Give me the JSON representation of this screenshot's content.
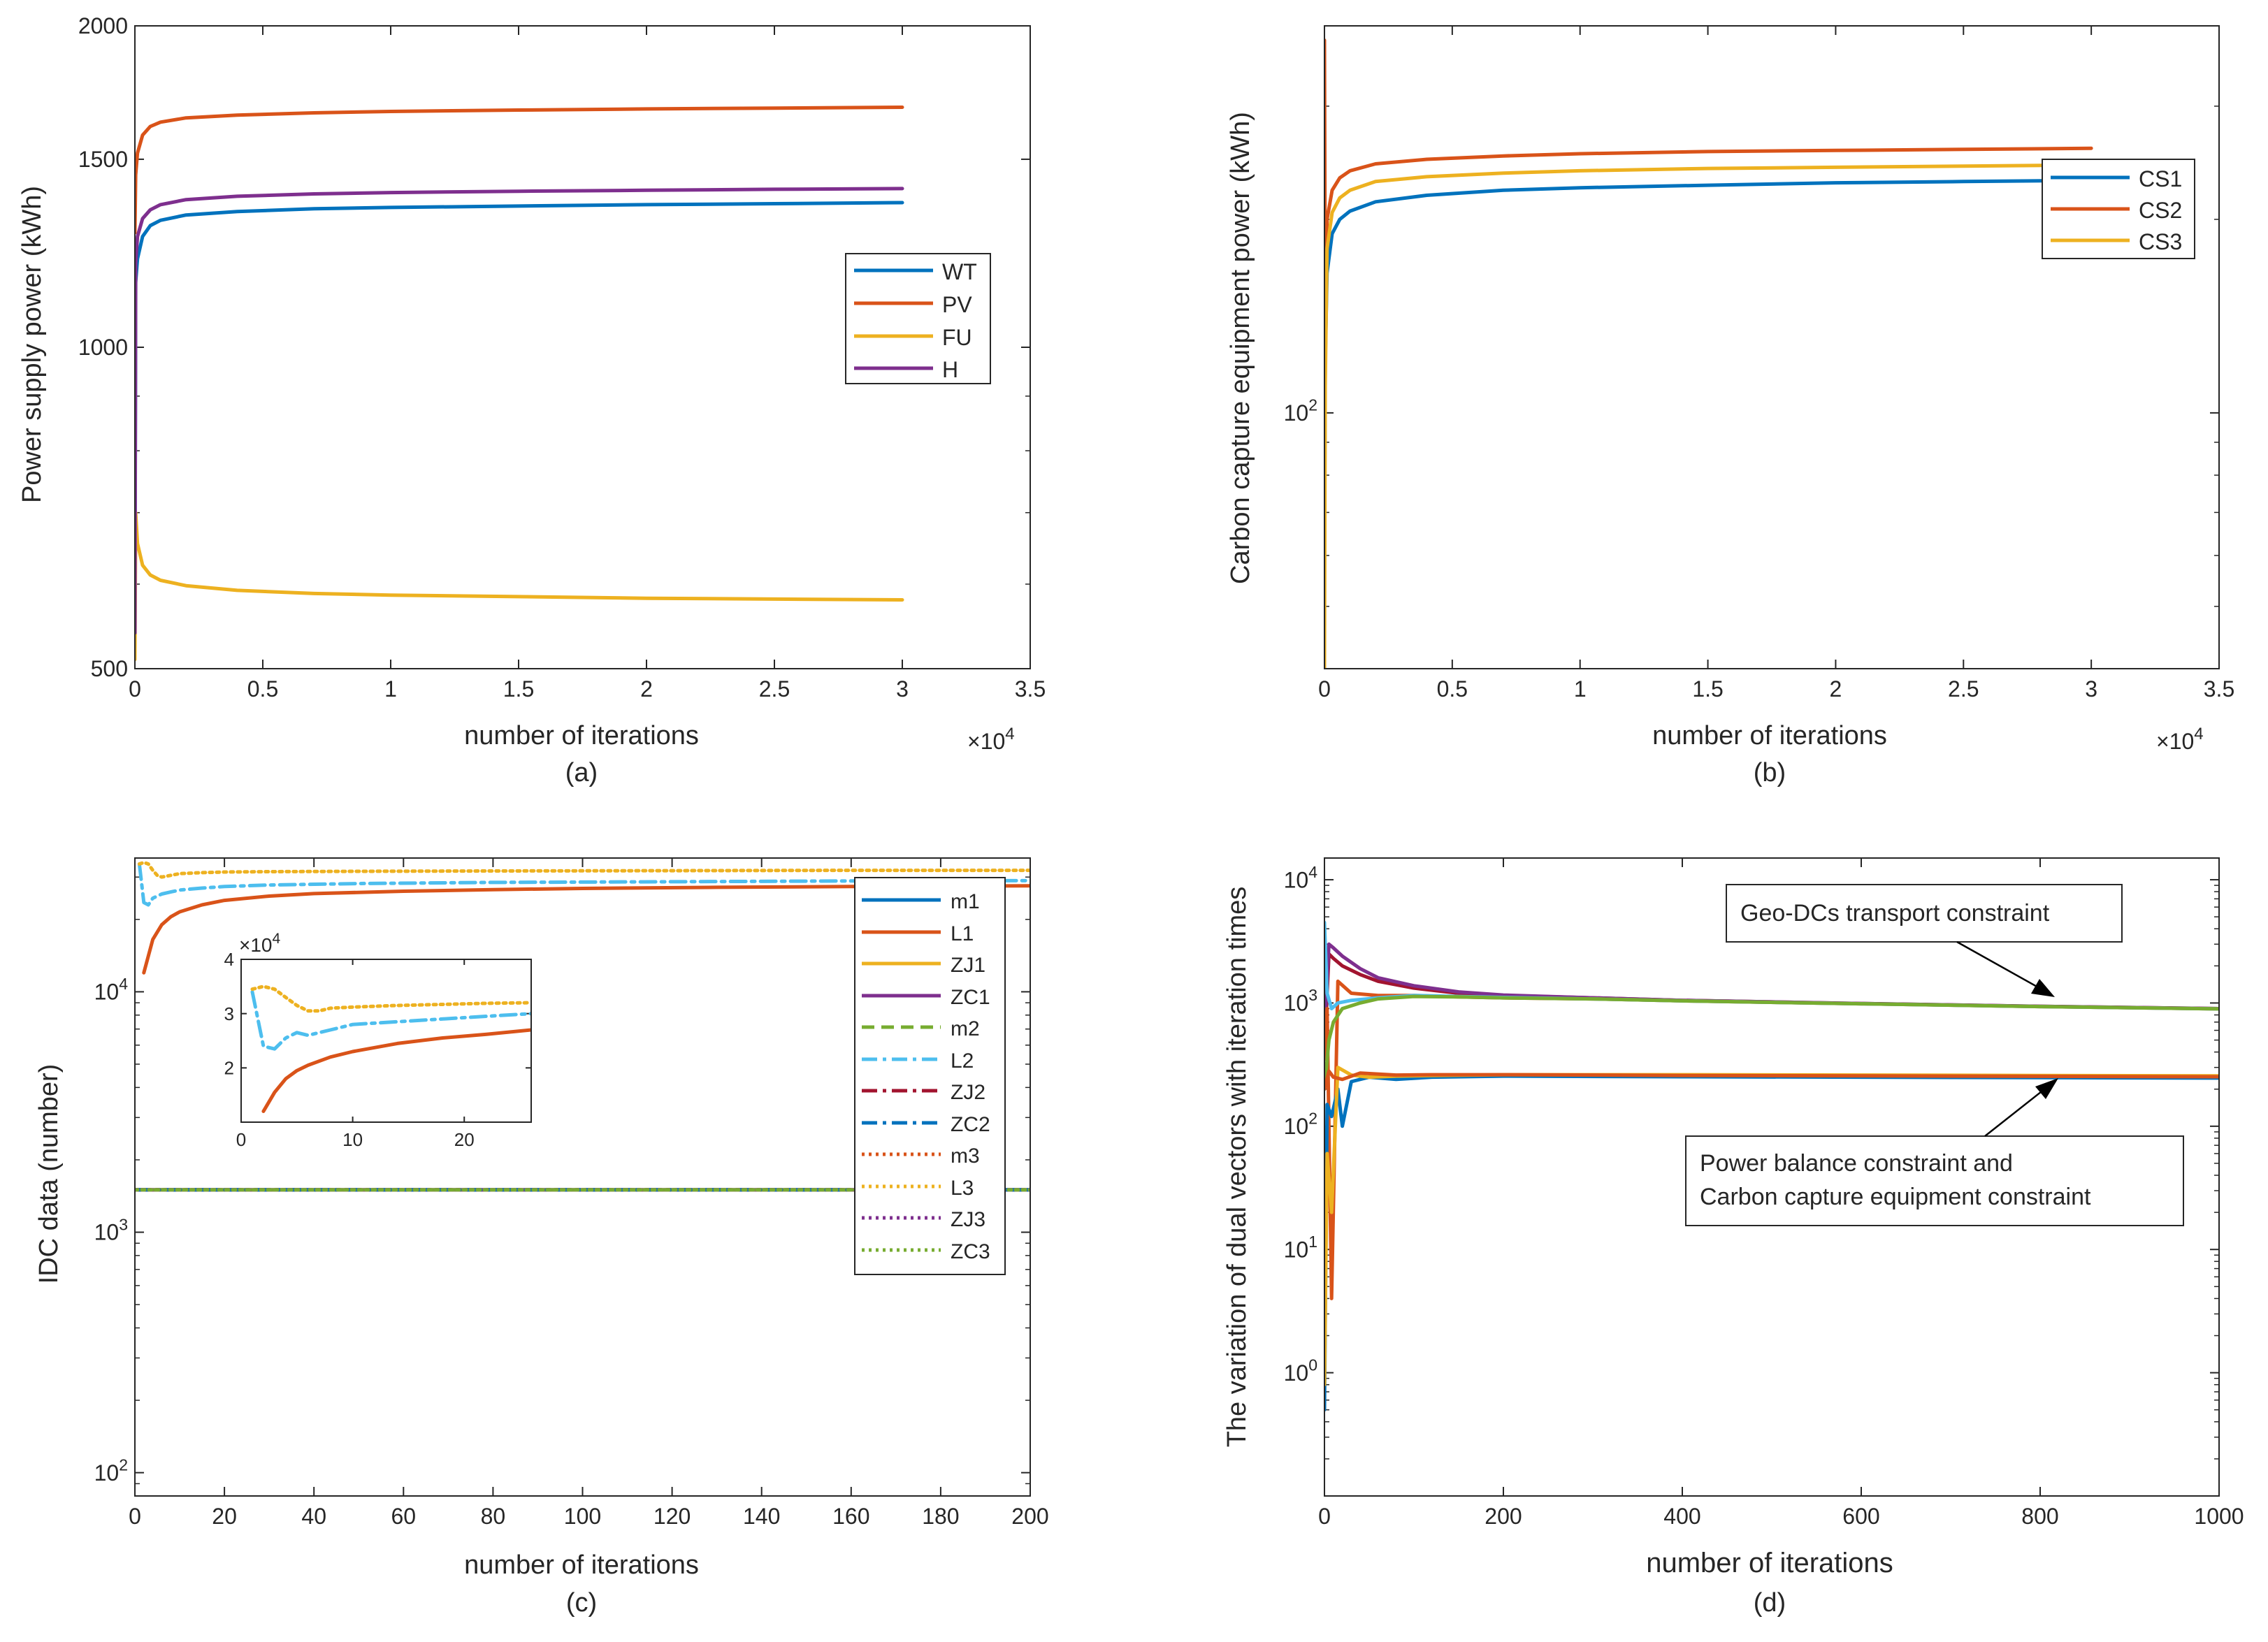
{
  "palette": {
    "blue": "#0072BD",
    "orange": "#D95319",
    "yellow": "#EDB120",
    "purple": "#7E2F8E",
    "green": "#77AC30",
    "cyan": "#4DBEEE",
    "darkred": "#A2142F"
  },
  "chart_data": [
    {
      "panel": "a",
      "type": "line",
      "caption": "(a)",
      "xlabel": "number of iterations",
      "ylabel": "Power supply power (kWh)",
      "x_multiplier": "×10",
      "x_multiplier_exp": "4",
      "xlim": [
        0,
        3.5
      ],
      "ylim": [
        500,
        2000
      ],
      "yscale": "log",
      "xticks": [
        0,
        0.5,
        1,
        1.5,
        2,
        2.5,
        3,
        3.5
      ],
      "xtick_labels": [
        "0",
        "0.5",
        "1",
        "1.5",
        "2",
        "2.5",
        "3",
        "3.5"
      ],
      "yticks": [
        500,
        1000,
        1500,
        2000
      ],
      "ytick_labels": [
        "500",
        "1000",
        "1500",
        "2000"
      ],
      "legend_position": "right",
      "series": [
        {
          "name": "WT",
          "color": "#0072BD",
          "dash": "solid",
          "x": [
            0,
            0.003,
            0.01,
            0.03,
            0.06,
            0.1,
            0.2,
            0.4,
            0.7,
            1,
            1.5,
            2,
            2.5,
            3
          ],
          "y": [
            520,
            1150,
            1210,
            1270,
            1300,
            1315,
            1330,
            1340,
            1348,
            1352,
            1356,
            1360,
            1363,
            1366
          ]
        },
        {
          "name": "PV",
          "color": "#D95319",
          "dash": "solid",
          "x": [
            0,
            0.003,
            0.01,
            0.03,
            0.06,
            0.1,
            0.2,
            0.4,
            0.7,
            1,
            1.5,
            2,
            2.5,
            3
          ],
          "y": [
            1280,
            1450,
            1520,
            1580,
            1610,
            1625,
            1640,
            1650,
            1658,
            1663,
            1668,
            1672,
            1675,
            1678
          ]
        },
        {
          "name": "FU",
          "color": "#EDB120",
          "dash": "solid",
          "x": [
            0,
            0.003,
            0.01,
            0.03,
            0.06,
            0.1,
            0.2,
            0.4,
            0.7,
            1,
            1.5,
            2,
            2.5,
            3
          ],
          "y": [
            510,
            700,
            655,
            625,
            612,
            605,
            598,
            592,
            588,
            586,
            584,
            582,
            581,
            580
          ]
        },
        {
          "name": "H",
          "color": "#7E2F8E",
          "dash": "solid",
          "x": [
            0,
            0.003,
            0.01,
            0.03,
            0.06,
            0.1,
            0.2,
            0.4,
            0.7,
            1,
            1.5,
            2,
            2.5,
            3
          ],
          "y": [
            540,
            1200,
            1270,
            1320,
            1345,
            1360,
            1375,
            1385,
            1392,
            1396,
            1400,
            1403,
            1406,
            1408
          ]
        }
      ]
    },
    {
      "panel": "b",
      "type": "line",
      "caption": "(b)",
      "xlabel": "number of iterations",
      "ylabel": "Carbon capture equipment power (kWh)",
      "x_multiplier": "×10",
      "x_multiplier_exp": "4",
      "xlim": [
        0,
        3.5
      ],
      "ylim": [
        40,
        400
      ],
      "yscale": "log",
      "xticks": [
        0,
        0.5,
        1,
        1.5,
        2,
        2.5,
        3,
        3.5
      ],
      "xtick_labels": [
        "0",
        "0.5",
        "1",
        "1.5",
        "2",
        "2.5",
        "3",
        "3.5"
      ],
      "yticks": [
        100
      ],
      "ytick_labels": [
        "10"
      ],
      "ytick_exps": [
        "2"
      ],
      "legend_position": "top-right",
      "series": [
        {
          "name": "CS1",
          "color": "#0072BD",
          "dash": "solid",
          "x": [
            0,
            0.003,
            0.01,
            0.03,
            0.06,
            0.1,
            0.2,
            0.4,
            0.7,
            1,
            1.5,
            2,
            2.5,
            3
          ],
          "y": [
            60,
            120,
            165,
            190,
            200,
            206,
            213,
            218,
            222,
            224,
            226,
            228,
            229,
            230
          ]
        },
        {
          "name": "CS2",
          "color": "#D95319",
          "dash": "solid",
          "x": [
            0,
            0.003,
            0.01,
            0.03,
            0.06,
            0.1,
            0.2,
            0.4,
            0.7,
            1,
            1.5,
            2,
            2.5,
            3
          ],
          "y": [
            380,
            150,
            200,
            222,
            232,
            238,
            244,
            248,
            251,
            253,
            255,
            256,
            257,
            258
          ]
        },
        {
          "name": "CS3",
          "color": "#EDB120",
          "dash": "solid",
          "x": [
            0,
            0.003,
            0.01,
            0.03,
            0.06,
            0.1,
            0.2,
            0.4,
            0.7,
            1,
            1.5,
            2,
            2.5,
            3
          ],
          "y": [
            40,
            110,
            180,
            205,
            216,
            222,
            229,
            233,
            236,
            238,
            240,
            241,
            242,
            243
          ]
        }
      ]
    },
    {
      "panel": "c",
      "type": "line",
      "caption": "(c)",
      "xlabel": "number of iterations",
      "ylabel": "IDC data (number)",
      "xlim": [
        0,
        200
      ],
      "ylim": [
        80,
        36000
      ],
      "yscale": "log",
      "xticks": [
        0,
        20,
        40,
        60,
        80,
        100,
        120,
        140,
        160,
        180,
        200
      ],
      "xtick_labels": [
        "0",
        "20",
        "40",
        "60",
        "80",
        "100",
        "120",
        "140",
        "160",
        "180",
        "200"
      ],
      "yticks": [
        100,
        1000,
        10000
      ],
      "ytick_labels": [
        "10",
        "10",
        "10"
      ],
      "ytick_exps": [
        "2",
        "3",
        "4"
      ],
      "legend_position": "top-right",
      "series": [
        {
          "name": "m1",
          "color": "#0072BD",
          "dash": "solid",
          "x": [
            0,
            200
          ],
          "y": [
            1500,
            1500
          ]
        },
        {
          "name": "L1",
          "color": "#D95319",
          "dash": "solid",
          "x": [
            2,
            4,
            6,
            8,
            10,
            15,
            20,
            30,
            40,
            60,
            80,
            100,
            130,
            160,
            200
          ],
          "y": [
            12000,
            16500,
            19000,
            20500,
            21500,
            23000,
            24000,
            25000,
            25600,
            26200,
            26600,
            26900,
            27200,
            27400,
            27600
          ]
        },
        {
          "name": "ZJ1",
          "color": "#EDB120",
          "dash": "solid",
          "x": [
            0,
            200
          ],
          "y": [
            1500,
            1500
          ]
        },
        {
          "name": "ZC1",
          "color": "#7E2F8E",
          "dash": "solid",
          "x": [
            0,
            200
          ],
          "y": [
            1500,
            1500
          ]
        },
        {
          "name": "m2",
          "color": "#77AC30",
          "dash": "dash",
          "x": [
            0,
            200
          ],
          "y": [
            1500,
            1500
          ]
        },
        {
          "name": "L2",
          "color": "#4DBEEE",
          "dash": "dashdot",
          "x": [
            1,
            2,
            3,
            4,
            6,
            8,
            10,
            15,
            20,
            30,
            50,
            80,
            120,
            160,
            200
          ],
          "y": [
            34000,
            23500,
            23000,
            24500,
            25500,
            26000,
            26500,
            27000,
            27400,
            27800,
            28200,
            28500,
            28700,
            28900,
            29000
          ]
        },
        {
          "name": "ZJ2",
          "color": "#A2142F",
          "dash": "dashdot",
          "x": [
            0,
            200
          ],
          "y": [
            1500,
            1500
          ]
        },
        {
          "name": "ZC2",
          "color": "#0072BD",
          "dash": "dashdot",
          "x": [
            0,
            200
          ],
          "y": [
            1500,
            1500
          ]
        },
        {
          "name": "m3",
          "color": "#D95319",
          "dash": "dot",
          "x": [
            0,
            200
          ],
          "y": [
            1500,
            1500
          ]
        },
        {
          "name": "L3",
          "color": "#EDB120",
          "dash": "dot",
          "x": [
            1,
            2,
            3,
            4,
            5,
            6,
            8,
            10,
            15,
            20,
            30,
            50,
            80,
            120,
            160,
            200
          ],
          "y": [
            34000,
            34500,
            34000,
            32000,
            30500,
            30000,
            30500,
            31000,
            31300,
            31500,
            31600,
            31700,
            31800,
            31900,
            32000,
            32000
          ]
        },
        {
          "name": "ZJ3",
          "color": "#7E2F8E",
          "dash": "dot",
          "x": [
            0,
            200
          ],
          "y": [
            1500,
            1500
          ]
        },
        {
          "name": "ZC3",
          "color": "#77AC30",
          "dash": "dot",
          "x": [
            0,
            200
          ],
          "y": [
            1500,
            1500
          ]
        }
      ],
      "inset": {
        "xlim": [
          0,
          26
        ],
        "ylim": [
          1,
          4
        ],
        "xticks": [
          0,
          10,
          20
        ],
        "xtick_labels": [
          "0",
          "10",
          "20"
        ],
        "yticks": [
          2,
          3,
          4
        ],
        "ytick_labels": [
          "2",
          "3",
          "4"
        ],
        "y_multiplier": "×10",
        "y_multiplier_exp": "4",
        "series": [
          {
            "color": "#D95319",
            "dash": "solid",
            "x": [
              2,
              3,
              4,
              5,
              6,
              8,
              10,
              14,
              18,
              22,
              26
            ],
            "y": [
              1.2,
              1.55,
              1.8,
              1.95,
              2.05,
              2.2,
              2.3,
              2.45,
              2.55,
              2.62,
              2.7
            ]
          },
          {
            "color": "#4DBEEE",
            "dash": "dashdot",
            "x": [
              1,
              2,
              3,
              4,
              5,
              6,
              8,
              10,
              14,
              18,
              22,
              26
            ],
            "y": [
              3.4,
              2.4,
              2.35,
              2.55,
              2.65,
              2.6,
              2.7,
              2.8,
              2.85,
              2.9,
              2.95,
              3.0
            ]
          },
          {
            "color": "#EDB120",
            "dash": "dot",
            "x": [
              1,
              2,
              3,
              4,
              5,
              6,
              7,
              8,
              10,
              14,
              18,
              22,
              26
            ],
            "y": [
              3.45,
              3.5,
              3.45,
              3.3,
              3.15,
              3.05,
              3.05,
              3.1,
              3.12,
              3.15,
              3.17,
              3.19,
              3.2
            ]
          }
        ]
      }
    },
    {
      "panel": "d",
      "type": "line",
      "caption": "(d)",
      "xlabel": "number of iterations",
      "ylabel": "The variation of dual vectors with iteration times",
      "xlim": [
        0,
        1000
      ],
      "ylim": [
        0.1,
        15000
      ],
      "yscale": "log",
      "xticks": [
        0,
        200,
        400,
        600,
        800,
        1000
      ],
      "xtick_labels": [
        "0",
        "200",
        "400",
        "600",
        "800",
        "1000"
      ],
      "yticks": [
        1,
        10,
        100,
        1000,
        10000
      ],
      "ytick_labels": [
        "10",
        "10",
        "10",
        "10",
        "10"
      ],
      "ytick_exps": [
        "0",
        "1",
        "2",
        "3",
        "4"
      ],
      "annotations": [
        {
          "lines": [
            "Geo-DCs transport constraint"
          ],
          "arrow_to": [
            815,
            900
          ]
        },
        {
          "lines": [
            "Power balance constraint and",
            "Carbon capture equipment constraint"
          ],
          "arrow_to": [
            820,
            255
          ]
        }
      ],
      "series": [
        {
          "color": "#A2142F",
          "x": [
            0,
            5,
            10,
            20,
            40,
            60,
            100,
            150,
            200,
            300,
            400,
            600,
            800,
            1000
          ],
          "y": [
            400,
            2500,
            2300,
            2000,
            1700,
            1500,
            1320,
            1200,
            1150,
            1100,
            1050,
            990,
            940,
            900
          ]
        },
        {
          "color": "#7E2F8E",
          "x": [
            0,
            5,
            10,
            20,
            40,
            60,
            100,
            150,
            200,
            300,
            400,
            600,
            800,
            1000
          ],
          "y": [
            600,
            3000,
            2800,
            2400,
            1900,
            1600,
            1380,
            1230,
            1160,
            1100,
            1050,
            990,
            940,
            900
          ]
        },
        {
          "color": "#D95319",
          "x": [
            0,
            3,
            8,
            15,
            30,
            60,
            100,
            150,
            200,
            300,
            400,
            600,
            800,
            1000
          ],
          "y": [
            350,
            900,
            4,
            1500,
            1200,
            1150,
            1150,
            1120,
            1100,
            1080,
            1040,
            985,
            935,
            895
          ]
        },
        {
          "color": "#4DBEEE",
          "x": [
            0,
            3,
            8,
            15,
            30,
            60,
            100,
            150,
            200,
            300,
            400,
            600,
            800,
            1000
          ],
          "y": [
            4500,
            1200,
            900,
            1000,
            1050,
            1100,
            1150,
            1130,
            1110,
            1080,
            1040,
            985,
            935,
            895
          ]
        },
        {
          "color": "#77AC30",
          "x": [
            0,
            5,
            10,
            20,
            40,
            60,
            100,
            150,
            200,
            300,
            400,
            600,
            800,
            1000
          ],
          "y": [
            200,
            500,
            700,
            900,
            1000,
            1080,
            1130,
            1120,
            1100,
            1080,
            1040,
            985,
            935,
            895
          ]
        },
        {
          "color": "#0072BD",
          "x": [
            0,
            3,
            8,
            15,
            20,
            30,
            50,
            80,
            120,
            200,
            400,
            600,
            800,
            1000
          ],
          "y": [
            0.5,
            150,
            120,
            200,
            100,
            230,
            250,
            240,
            250,
            255,
            252,
            250,
            248,
            246
          ]
        },
        {
          "color": "#EDB120",
          "x": [
            0,
            3,
            8,
            15,
            30,
            50,
            80,
            120,
            200,
            400,
            600,
            800,
            1000
          ],
          "y": [
            0.8,
            60,
            20,
            300,
            260,
            250,
            255,
            258,
            262,
            262,
            260,
            258,
            256
          ]
        },
        {
          "color": "#D95319",
          "x": [
            0,
            5,
            10,
            20,
            40,
            80,
            120,
            200,
            400,
            600,
            800,
            1000
          ],
          "y": [
            200,
            280,
            250,
            240,
            270,
            260,
            262,
            262,
            258,
            256,
            254,
            252
          ]
        }
      ]
    }
  ]
}
